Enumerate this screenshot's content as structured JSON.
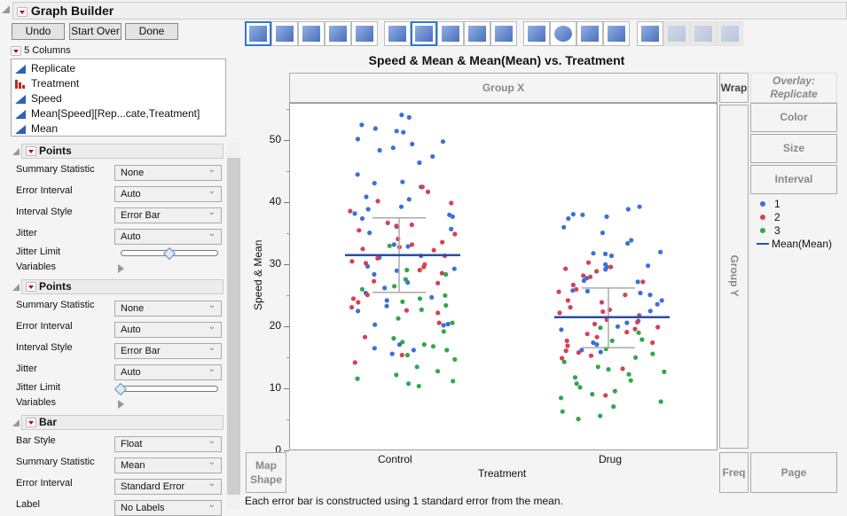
{
  "app": {
    "title": "Graph Builder"
  },
  "toolbar": {
    "undo": "Undo",
    "start_over": "Start Over",
    "done": "Done"
  },
  "columns": {
    "header": "5 Columns",
    "items": [
      {
        "name": "Replicate",
        "type": "continuous"
      },
      {
        "name": "Treatment",
        "type": "nominal"
      },
      {
        "name": "Speed",
        "type": "continuous"
      },
      {
        "name": "Mean[Speed][Rep...cate,Treatment]",
        "type": "continuous"
      },
      {
        "name": "Mean",
        "type": "continuous"
      }
    ]
  },
  "panels": [
    {
      "title": "Points",
      "rows": [
        {
          "label": "Summary Statistic",
          "value": "None"
        },
        {
          "label": "Error Interval",
          "value": "Auto"
        },
        {
          "label": "Interval Style",
          "value": "Error Bar"
        },
        {
          "label": "Jitter",
          "value": "Auto"
        }
      ],
      "jitter_limit_label": "Jitter Limit",
      "variables_label": "Variables"
    },
    {
      "title": "Points",
      "rows": [
        {
          "label": "Summary Statistic",
          "value": "None"
        },
        {
          "label": "Error Interval",
          "value": "Auto"
        },
        {
          "label": "Interval Style",
          "value": "Error Bar"
        },
        {
          "label": "Jitter",
          "value": "Auto"
        }
      ],
      "jitter_limit_label": "Jitter Limit",
      "variables_label": "Variables"
    },
    {
      "title": "Bar",
      "rows": [
        {
          "label": "Bar Style",
          "value": "Float"
        },
        {
          "label": "Summary Statistic",
          "value": "Mean"
        },
        {
          "label": "Error Interval",
          "value": "Standard Error"
        },
        {
          "label": "Label",
          "value": "No Labels"
        }
      ]
    }
  ],
  "zones": {
    "group_x": "Group X",
    "group_y": "Group Y",
    "wrap": "Wrap",
    "overlay": "Overlay:",
    "overlay_var": "Replicate",
    "color": "Color",
    "size": "Size",
    "interval": "Interval",
    "map_shape_1": "Map",
    "map_shape_2": "Shape",
    "freq": "Freq",
    "page": "Page"
  },
  "legend": [
    {
      "label": "1",
      "color": "#3b6fdc"
    },
    {
      "label": "2",
      "color": "#d8404f"
    },
    {
      "label": "3",
      "color": "#2ea84a"
    },
    {
      "label": "Mean(Mean)",
      "color": "#2a4fa0",
      "type": "line"
    }
  ],
  "footnote": "Each error bar is constructed using 1 standard error from the mean.",
  "chart_data": {
    "type": "scatter",
    "title": "Speed & Mean & Mean(Mean) vs. Treatment",
    "xlabel": "Treatment",
    "ylabel": "Speed & Mean",
    "categories": [
      "Control",
      "Drug"
    ],
    "yticks": [
      "0",
      "10",
      "20",
      "30",
      "40",
      "50"
    ],
    "ylim": [
      0,
      55
    ],
    "mean_of_mean": {
      "Control": 31.6,
      "Drug": 21.6
    },
    "error_bars": {
      "Control": [
        25.6,
        37.6
      ],
      "Drug": [
        16.7,
        26.3
      ]
    },
    "series": [
      {
        "name": "1",
        "color": "#3b6fdc",
        "points": {
          "Control": [
            54.2,
            53.8,
            52.6,
            52.0,
            51.6,
            51.4,
            50.3,
            49.9,
            49.5,
            48.9,
            48.5,
            47.5,
            46.5,
            44.6,
            43.4,
            43.2,
            42.6,
            41.0,
            40.6,
            39.4,
            39.0,
            38.3,
            38.1,
            37.8,
            37.5,
            36.2,
            35.8,
            35.2,
            33.3,
            33.0,
            31.5,
            31.2,
            29.8,
            29.4,
            29.1,
            28.5,
            27.2,
            26.3,
            25.5,
            24.8,
            24.3,
            23.4,
            22.6,
            20.5,
            20.4,
            20.3,
            17.2,
            16.6,
            16.3,
            15.7
          ],
          "Drug": [
            39.4,
            39.0,
            38.2,
            38.1,
            37.8,
            37.5,
            36.1,
            35.2,
            34.0,
            33.5,
            32.1,
            31.9,
            31.8,
            31.5,
            30.1,
            29.9,
            29.7,
            29.3,
            27.9,
            27.5,
            27.3,
            25.9,
            25.8,
            25.5,
            25.2,
            24.3,
            23.7,
            22.6,
            21.0,
            20.7,
            20.1,
            19.6,
            17.5,
            17.2,
            16.3,
            16.0
          ]
        }
      },
      {
        "name": "2",
        "color": "#d8404f",
        "points": {
          "Control": [
            42.6,
            41.8,
            40.3,
            40.0,
            38.7,
            36.8,
            36.5,
            36.3,
            35.6,
            35.0,
            34.2,
            33.7,
            33.3,
            32.9,
            32.6,
            32.4,
            31.5,
            31.1,
            30.6,
            30.3,
            30.1,
            29.7,
            29.2,
            28.7,
            27.4,
            27.1,
            25.2,
            24.6,
            24.0,
            23.2,
            22.7,
            22.3,
            20.7,
            18.4,
            15.5,
            14.3
          ],
          "Drug": [
            30.4,
            29.7,
            29.4,
            29.0,
            28.3,
            28.1,
            27.3,
            26.8,
            26.1,
            25.7,
            25.2,
            24.3,
            24.0,
            23.2,
            22.8,
            22.5,
            22.3,
            21.9,
            21.2,
            20.8,
            20.5,
            20.0,
            19.7,
            19.2,
            18.9,
            18.4,
            17.8,
            17.5,
            17.0,
            16.2,
            15.9,
            15.4,
            15.0,
            13.3,
            9.0
          ]
        }
      },
      {
        "name": "3",
        "color": "#2ea84a",
        "points": {
          "Control": [
            33.1,
            29.2,
            28.5,
            27.7,
            26.6,
            26.1,
            25.1,
            24.6,
            24.1,
            23.5,
            22.8,
            21.4,
            20.7,
            19.3,
            18.2,
            17.6,
            17.2,
            16.9,
            16.3,
            15.5,
            14.8,
            13.6,
            12.9,
            12.3,
            11.7,
            11.3,
            10.9,
            10.5
          ],
          "Drug": [
            19.9,
            19.1,
            18.0,
            17.8,
            16.5,
            15.7,
            15.1,
            14.4,
            13.6,
            13.2,
            12.8,
            12.4,
            11.9,
            11.4,
            10.9,
            10.3,
            9.7,
            9.2,
            8.6,
            8.0,
            7.2,
            6.4,
            5.7,
            5.2
          ]
        }
      }
    ]
  }
}
